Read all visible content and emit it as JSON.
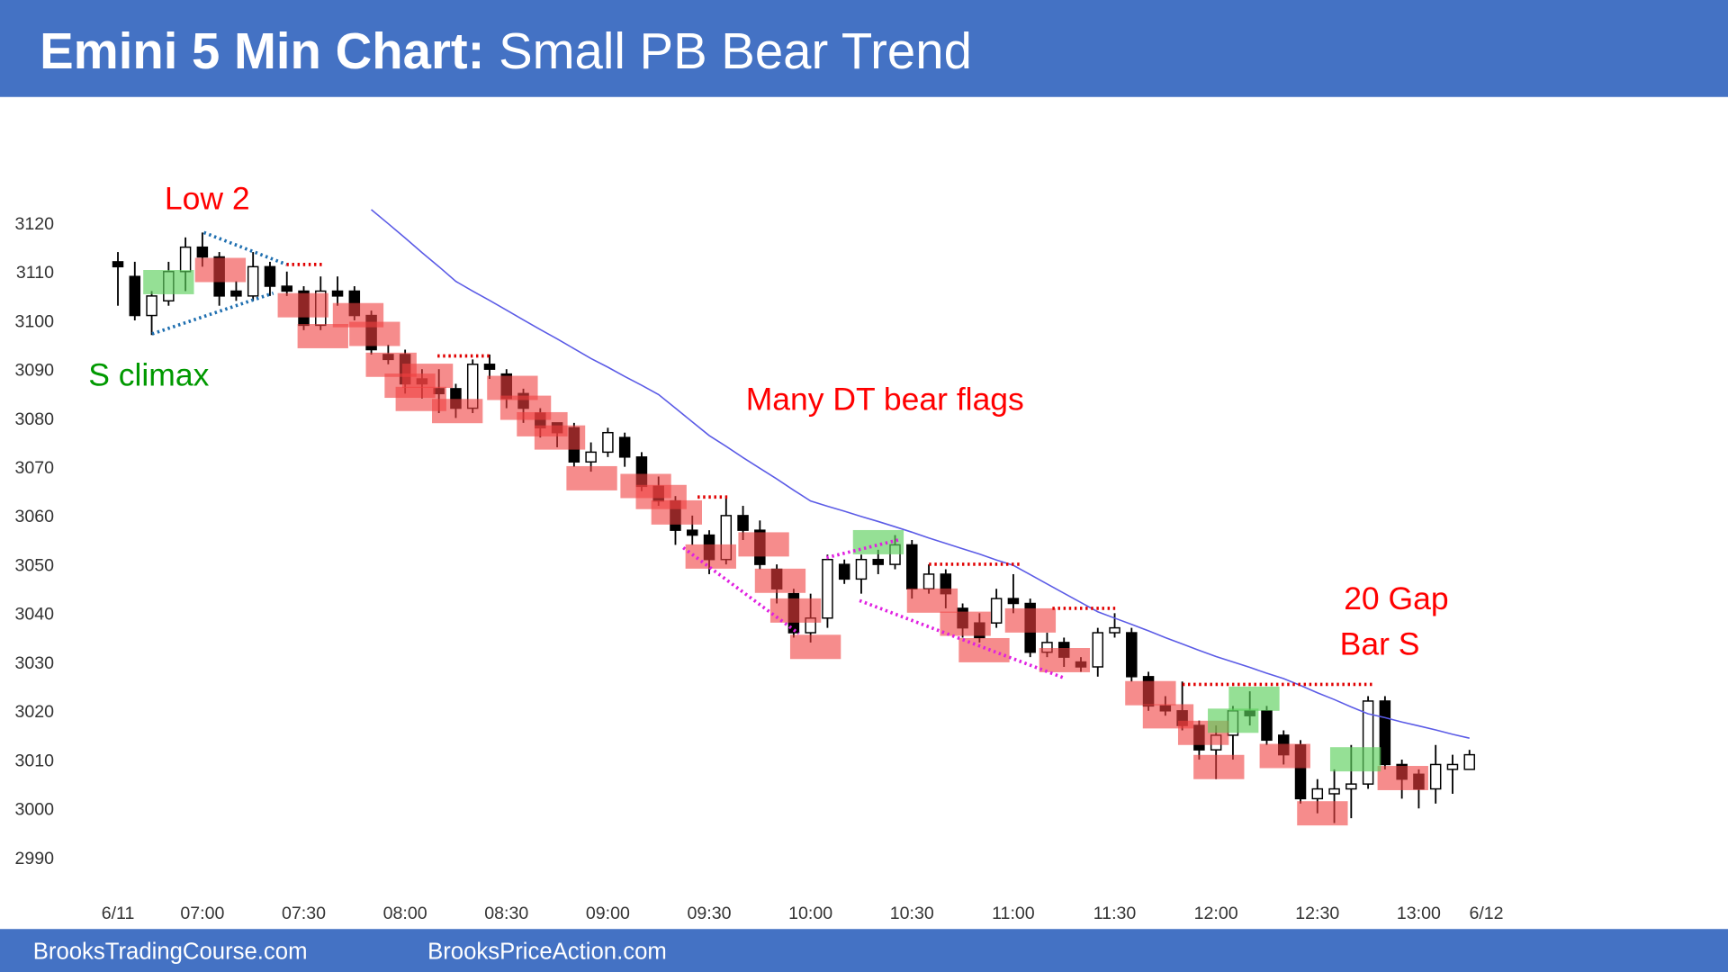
{
  "header": {
    "title": "Emini 5 Min Chart:",
    "subtitle": "Small PB Bear Trend"
  },
  "chart_data": {
    "type": "candlestick",
    "categories": [
      "6/11",
      null,
      null,
      null,
      null,
      "07:00",
      null,
      null,
      null,
      null,
      null,
      "07:30",
      null,
      null,
      null,
      null,
      null,
      "08:00",
      null,
      null,
      null,
      null,
      null,
      "08:30",
      null,
      null,
      null,
      null,
      null,
      "09:00",
      null,
      null,
      null,
      null,
      null,
      "09:30",
      null,
      null,
      null,
      null,
      null,
      "10:00",
      null,
      null,
      null,
      null,
      null,
      "10:30",
      null,
      null,
      null,
      null,
      null,
      "11:00",
      null,
      null,
      null,
      null,
      null,
      "11:30",
      null,
      null,
      null,
      null,
      null,
      "12:00",
      null,
      null,
      null,
      null,
      null,
      "12:30",
      null,
      null,
      null,
      null,
      null,
      "13:00",
      null,
      null,
      null,
      "6/12"
    ],
    "open": [
      3112,
      3109,
      3101,
      3104,
      3110,
      3115,
      3113,
      3106,
      3105,
      3111,
      3107,
      3106,
      3099,
      3106,
      3106,
      3101,
      3093,
      3093,
      3088,
      3086,
      3086,
      3082,
      3091,
      3089,
      3085,
      3081,
      3079,
      3078,
      3071,
      3073,
      3076,
      3072,
      3066,
      3063,
      3057,
      3056,
      3051,
      3060,
      3057,
      3049,
      3044,
      3036,
      3039,
      3050,
      3047,
      3051,
      3050,
      3054,
      3045,
      3048,
      3041,
      3038,
      3038,
      3043,
      3042,
      3032,
      3034,
      3030,
      3029,
      3036,
      3036,
      3027,
      3021,
      3020,
      3017,
      3012,
      3015,
      3020,
      3020,
      3015,
      3013,
      3002,
      3003,
      3004,
      3005,
      3022,
      3009,
      3007,
      3004,
      3008,
      3008,
      null
    ],
    "high": [
      3114,
      3112,
      3106,
      3112,
      3117,
      3118,
      3114,
      3108,
      3114,
      3112,
      3110,
      3107,
      3109,
      3109,
      3107,
      3102,
      3095,
      3094,
      3090,
      3090,
      3087,
      3092,
      3093,
      3090,
      3086,
      3082,
      3079,
      3079,
      3075,
      3078,
      3077,
      3073,
      3068,
      3064,
      3060,
      3057,
      3064,
      3062,
      3059,
      3050,
      3045,
      3044,
      3052,
      3051,
      3052,
      3053,
      3056,
      3055,
      3050,
      3049,
      3042,
      3040,
      3045,
      3048,
      3043,
      3036,
      3035,
      3031,
      3037,
      3040,
      3037,
      3028,
      3023,
      3026,
      3018,
      3017,
      3021,
      3024,
      3021,
      3016,
      3014,
      3006,
      3008,
      3013,
      3023,
      3023,
      3010,
      3008,
      3013,
      3011,
      3012,
      null
    ],
    "low": [
      3103,
      3100,
      3097,
      3103,
      3106,
      3111,
      3103,
      3104,
      3104,
      3105,
      3105,
      3098,
      3098,
      3103,
      3100,
      3093,
      3091,
      3085,
      3084,
      3081,
      3080,
      3081,
      3088,
      3082,
      3079,
      3076,
      3074,
      3070,
      3069,
      3072,
      3070,
      3065,
      3062,
      3054,
      3054,
      3048,
      3050,
      3055,
      3049,
      3042,
      3035,
      3034,
      3037,
      3046,
      3044,
      3048,
      3049,
      3043,
      3044,
      3041,
      3035,
      3034,
      3037,
      3040,
      3031,
      3031,
      3029,
      3028,
      3027,
      3035,
      3026,
      3020,
      3019,
      3016,
      3010,
      3006,
      3010,
      3017,
      3013,
      3009,
      3001,
      2999,
      2997,
      2998,
      3004,
      3008,
      3002,
      3000,
      3001,
      3003,
      3008,
      null
    ],
    "close": [
      3111,
      3101,
      3105,
      3110,
      3115,
      3113,
      3105,
      3105,
      3111,
      3107,
      3106,
      3099,
      3106,
      3105,
      3101,
      3094,
      3092,
      3087,
      3087,
      3085,
      3082,
      3091,
      3090,
      3084,
      3082,
      3078,
      3077,
      3071,
      3073,
      3077,
      3072,
      3066,
      3063,
      3057,
      3056,
      3051,
      3060,
      3057,
      3050,
      3045,
      3036,
      3039,
      3051,
      3047,
      3051,
      3050,
      3054,
      3045,
      3048,
      3044,
      3037,
      3035,
      3043,
      3042,
      3032,
      3034,
      3031,
      3029,
      3036,
      3037,
      3027,
      3021,
      3020,
      3017,
      3012,
      3015,
      3020,
      3019,
      3014,
      3011,
      3002,
      3004,
      3004,
      3005,
      3022,
      3009,
      3006,
      3004,
      3009,
      3009,
      3011,
      null
    ],
    "up_color": "#ffffff",
    "down_color": "#000000",
    "moving_average": {
      "color": "#5b5be6",
      "values": [
        null,
        null,
        null,
        null,
        null,
        null,
        null,
        null,
        null,
        null,
        null,
        null,
        null,
        null,
        null,
        3122.7,
        3119.8,
        3116.9,
        3113.9,
        3111.0,
        3108,
        3106.0,
        3104.1,
        3102.1,
        3100.1,
        3098.1,
        3096.2,
        3094.2,
        3092.2,
        3090.4,
        3088.5,
        3086.7,
        3084.8,
        3082.0,
        3079.2,
        3076.4,
        3074.2,
        3071.9,
        3069.7,
        3067.5,
        3065.2,
        3063.0,
        3061.9,
        3060.9,
        3059.8,
        3058.8,
        3057.7,
        3056.6,
        3055.4,
        3054.3,
        3053.2,
        3052.1,
        3050.9,
        3049.8,
        3047.9,
        3046.0,
        3044.1,
        3042.2,
        3040.3,
        3039.0,
        3037.7,
        3036.4,
        3035.0,
        3033.7,
        3032.4,
        3031.1,
        3030.0,
        3028.9,
        3027.7,
        3026.6,
        3025.2,
        3023.7,
        3022.3,
        3020.8,
        3019.4,
        3018.6,
        3017.7,
        3016.9,
        3016.1,
        3015.2,
        3014.4,
        null
      ]
    },
    "ylim": [
      2985,
      3125
    ],
    "yticks": [
      2990,
      3000,
      3010,
      3020,
      3030,
      3040,
      3050,
      3060,
      3070,
      3080,
      3090,
      3100,
      3110,
      3120
    ],
    "annotations": [
      {
        "text": "Low 2",
        "color": "#ff0000"
      },
      {
        "text": "S climax",
        "color": "#009900"
      },
      {
        "text": "Many DT bear flags",
        "color": "#ff0000"
      },
      {
        "text": "20 Gap",
        "color": "#ff0000"
      },
      {
        "text": "Bar S",
        "color": "#ff0000"
      }
    ]
  },
  "footer": {
    "left": "BrooksTradingCourse.com",
    "right": "BrooksPriceAction.com"
  }
}
